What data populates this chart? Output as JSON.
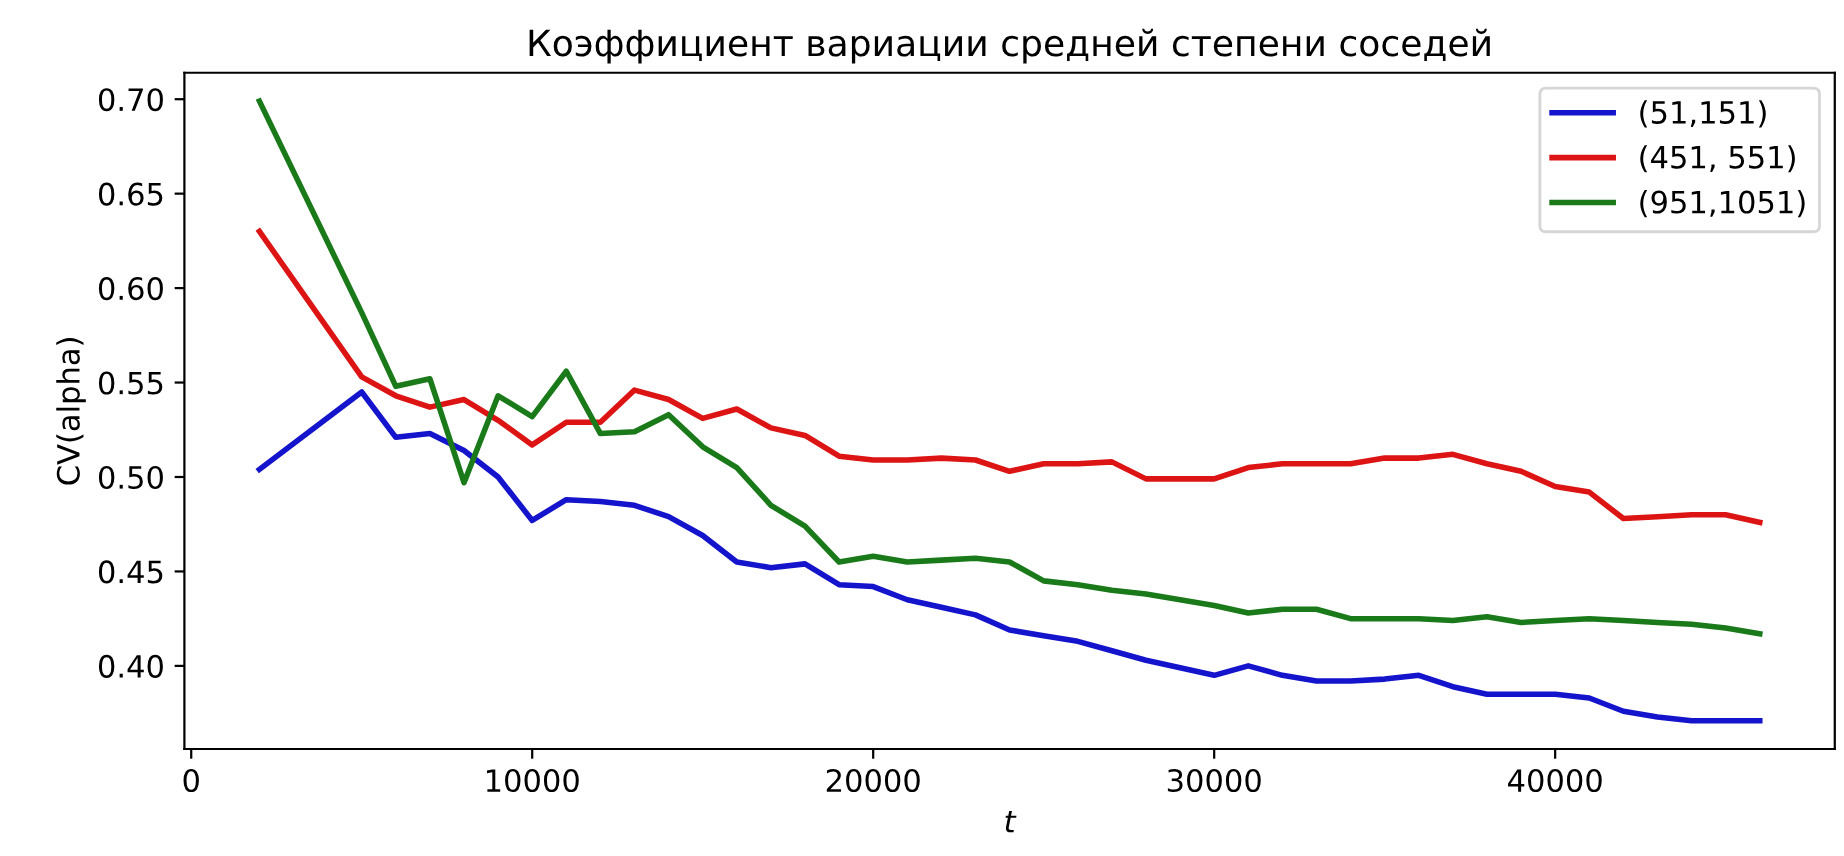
{
  "chart_data": {
    "type": "line",
    "title": "Коэффициент вариации средней степени соседей",
    "xlabel": "t",
    "ylabel": "CV(alpha)",
    "x": [
      2000,
      5000,
      6000,
      7000,
      8000,
      9000,
      10000,
      11000,
      12000,
      13000,
      14000,
      15000,
      16000,
      17000,
      18000,
      19000,
      20000,
      21000,
      22000,
      23000,
      24000,
      25000,
      26000,
      27000,
      28000,
      29000,
      30000,
      31000,
      32000,
      33000,
      34000,
      35000,
      36000,
      37000,
      38000,
      39000,
      40000,
      41000,
      42000,
      43000,
      44000,
      45000,
      46000
    ],
    "series": [
      {
        "name": "(51,151)",
        "color": "#1414cc",
        "values": [
          0.504,
          0.545,
          0.521,
          0.523,
          0.514,
          0.5,
          0.477,
          0.488,
          0.487,
          0.485,
          0.479,
          0.469,
          0.455,
          0.452,
          0.454,
          0.443,
          0.442,
          0.435,
          0.431,
          0.427,
          0.419,
          0.416,
          0.413,
          0.408,
          0.403,
          0.399,
          0.395,
          0.4,
          0.395,
          0.392,
          0.392,
          0.393,
          0.395,
          0.389,
          0.385,
          0.385,
          0.385,
          0.383,
          0.376,
          0.373,
          0.371,
          0.371,
          0.371
        ]
      },
      {
        "name": "(451, 551)",
        "color": "#dd1414",
        "values": [
          0.63,
          0.553,
          0.543,
          0.537,
          0.541,
          0.53,
          0.517,
          0.529,
          0.529,
          0.546,
          0.541,
          0.531,
          0.536,
          0.526,
          0.522,
          0.511,
          0.509,
          0.509,
          0.51,
          0.509,
          0.503,
          0.507,
          0.507,
          0.508,
          0.499,
          0.499,
          0.499,
          0.505,
          0.507,
          0.507,
          0.507,
          0.51,
          0.51,
          0.512,
          0.507,
          0.503,
          0.495,
          0.492,
          0.478,
          0.479,
          0.48,
          0.48,
          0.476
        ]
      },
      {
        "name": "(951,1051)",
        "color": "#1a7a1a",
        "values": [
          0.699,
          0.587,
          0.548,
          0.552,
          0.497,
          0.543,
          0.532,
          0.556,
          0.523,
          0.524,
          0.533,
          0.516,
          0.505,
          0.485,
          0.474,
          0.455,
          0.458,
          0.455,
          0.456,
          0.457,
          0.455,
          0.445,
          0.443,
          0.44,
          0.438,
          0.435,
          0.432,
          0.428,
          0.43,
          0.43,
          0.425,
          0.425,
          0.425,
          0.424,
          0.426,
          0.423,
          0.424,
          0.425,
          0.424,
          0.423,
          0.422,
          0.42,
          0.417
        ]
      }
    ],
    "xlim": [
      -200,
      48200
    ],
    "ylim": [
      0.356,
      0.714
    ],
    "xticks": [
      0,
      10000,
      20000,
      30000,
      40000
    ],
    "yticks": [
      {
        "value": 0.4,
        "label": "0.40"
      },
      {
        "value": 0.45,
        "label": "0.45"
      },
      {
        "value": 0.5,
        "label": "0.50"
      },
      {
        "value": 0.55,
        "label": "0.55"
      },
      {
        "value": 0.6,
        "label": "0.60"
      },
      {
        "value": 0.65,
        "label": "0.65"
      },
      {
        "value": 0.7,
        "label": "0.70"
      }
    ],
    "legend": "top right",
    "grid": false,
    "marker": "none",
    "line_style": "solid"
  }
}
